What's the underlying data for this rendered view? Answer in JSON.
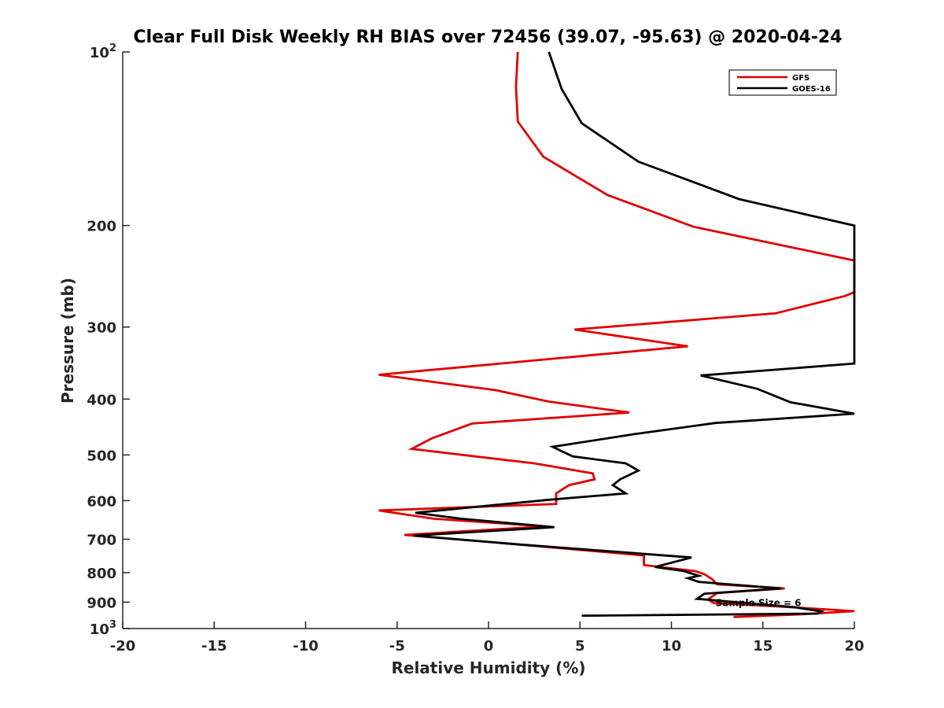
{
  "chart_data": {
    "type": "line",
    "title": "Clear Full Disk Weekly RH BIAS over 72456 (39.07, -95.63) @ 2020-04-24",
    "xlabel": "Relative Humidity (%)",
    "ylabel": "Pressure (mb)",
    "xlim": [
      -20,
      20
    ],
    "ylim": [
      100,
      1000
    ],
    "yscale": "log",
    "yreversed": true,
    "grid": false,
    "legend_position": "top-right",
    "x_ticks": [
      -20,
      -15,
      -10,
      -5,
      0,
      5,
      10,
      15,
      20
    ],
    "x_tick_labels": [
      "-20",
      "-15",
      "-10",
      "-5",
      "0",
      "5",
      "10",
      "15",
      "20"
    ],
    "y_ticks": [
      100,
      200,
      300,
      400,
      500,
      600,
      700,
      800,
      900,
      1000
    ],
    "y_tick_labels": [
      {
        "base": "10",
        "sup": "2"
      },
      {
        "base": "200",
        "sup": ""
      },
      {
        "base": "300",
        "sup": ""
      },
      {
        "base": "400",
        "sup": ""
      },
      {
        "base": "500",
        "sup": ""
      },
      {
        "base": "600",
        "sup": ""
      },
      {
        "base": "700",
        "sup": ""
      },
      {
        "base": "800",
        "sup": ""
      },
      {
        "base": "900",
        "sup": ""
      },
      {
        "base": "10",
        "sup": "3"
      }
    ],
    "annotation": {
      "text": "Sample Size = 6",
      "x": 12.5,
      "y": 900
    },
    "series": [
      {
        "name": "GFS",
        "color": "#e00000",
        "points": [
          [
            1.6,
            100
          ],
          [
            1.5,
            115
          ],
          [
            1.6,
            132
          ],
          [
            3.0,
            152
          ],
          [
            6.5,
            177
          ],
          [
            11.2,
            201
          ],
          [
            20,
            230
          ],
          [
            20,
            261
          ],
          [
            19.5,
            265
          ],
          [
            15.7,
            284
          ],
          [
            4.7,
            303
          ],
          [
            10.9,
            324
          ],
          [
            -6.0,
            363
          ],
          [
            0.4,
            386
          ],
          [
            3.3,
            404
          ],
          [
            7.7,
            422
          ],
          [
            -0.9,
            441
          ],
          [
            -3.1,
            468
          ],
          [
            -4.2,
            488
          ],
          [
            2.5,
            517
          ],
          [
            5.7,
            538
          ],
          [
            5.8,
            551
          ],
          [
            4.4,
            564
          ],
          [
            3.7,
            583
          ],
          [
            3.7,
            608
          ],
          [
            -6.0,
            624
          ],
          [
            -3.0,
            645
          ],
          [
            3.1,
            665
          ],
          [
            -4.6,
            688
          ],
          [
            1.5,
            714
          ],
          [
            8.5,
            747
          ],
          [
            8.5,
            776
          ],
          [
            11.3,
            795
          ],
          [
            11.8,
            805
          ],
          [
            12.2,
            820
          ],
          [
            12.5,
            838
          ],
          [
            16.2,
            852
          ],
          [
            12.5,
            868
          ],
          [
            12.0,
            890
          ],
          [
            12.3,
            903
          ],
          [
            16.0,
            916
          ],
          [
            20.0,
            933
          ],
          [
            17.0,
            945
          ],
          [
            13.4,
            955
          ]
        ]
      },
      {
        "name": "GOES-16",
        "color": "#000000",
        "points": [
          [
            3.3,
            100
          ],
          [
            4.0,
            116
          ],
          [
            5.1,
            133
          ],
          [
            8.2,
            155
          ],
          [
            13.7,
            180
          ],
          [
            20,
            200
          ],
          [
            20,
            347
          ],
          [
            11.6,
            364
          ],
          [
            14.7,
            384
          ],
          [
            16.5,
            405
          ],
          [
            20,
            424
          ],
          [
            12.4,
            440
          ],
          [
            8.0,
            460
          ],
          [
            3.5,
            484
          ],
          [
            4.6,
            503
          ],
          [
            7.5,
            517
          ],
          [
            8.2,
            532
          ],
          [
            7.2,
            551
          ],
          [
            6.8,
            564
          ],
          [
            7.5,
            583
          ],
          [
            3.3,
            598
          ],
          [
            -4.0,
            630
          ],
          [
            -1.5,
            645
          ],
          [
            3.6,
            667
          ],
          [
            -4.1,
            690
          ],
          [
            1.5,
            714
          ],
          [
            11.1,
            753
          ],
          [
            9.1,
            782
          ],
          [
            10.7,
            795
          ],
          [
            11.5,
            810
          ],
          [
            10.9,
            818
          ],
          [
            11.5,
            830
          ],
          [
            16.0,
            852
          ],
          [
            11.8,
            870
          ],
          [
            11.4,
            888
          ],
          [
            16.7,
            918
          ],
          [
            18.2,
            934
          ],
          [
            18.0,
            942
          ],
          [
            5.1,
            950
          ]
        ]
      }
    ]
  }
}
